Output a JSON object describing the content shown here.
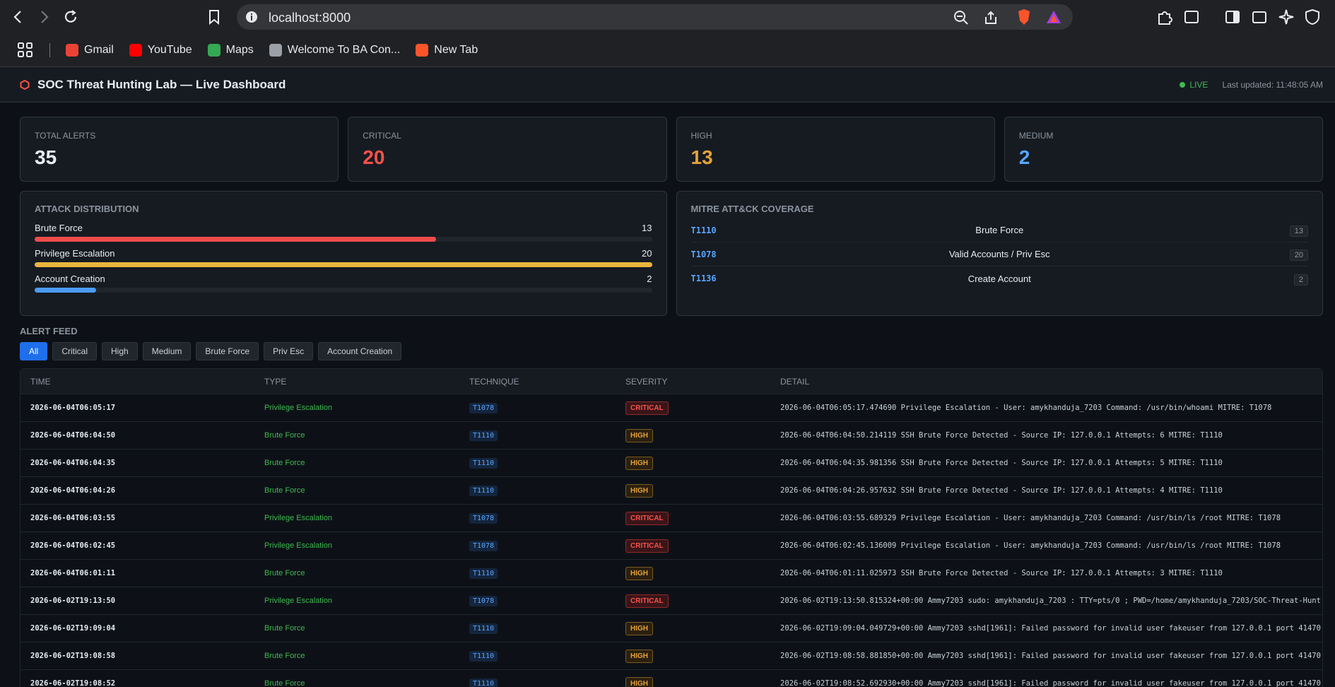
{
  "browser": {
    "url": "localhost:8000",
    "bookmarks": [
      "Gmail",
      "YouTube",
      "Maps",
      "Welcome To BA Con...",
      "New Tab"
    ]
  },
  "header": {
    "title": "SOC Threat Hunting Lab — Live Dashboard",
    "live": "LIVE",
    "updated": "Last updated: 11:48:05 AM"
  },
  "stats": [
    {
      "label": "TOTAL ALERTS",
      "value": 35,
      "color": "#e6edf3"
    },
    {
      "label": "CRITICAL",
      "value": 20,
      "color": "#f85149"
    },
    {
      "label": "HIGH",
      "value": 13,
      "color": "#e3a23b"
    },
    {
      "label": "MEDIUM",
      "value": 2,
      "color": "#58a6ff"
    }
  ],
  "distribution": {
    "title": "ATTACK DISTRIBUTION",
    "items": [
      {
        "name": "Brute Force",
        "count": 13,
        "color": "#f04b4b"
      },
      {
        "name": "Privilege Escalation",
        "count": 20,
        "color": "#e8b53e"
      },
      {
        "name": "Account Creation",
        "count": 2,
        "color": "#4b9bf5"
      }
    ]
  },
  "mitre": {
    "title": "MITRE ATT&CK COVERAGE",
    "rows": [
      {
        "id": "T1110",
        "name": "Brute Force",
        "count": 13
      },
      {
        "id": "T1078",
        "name": "Valid Accounts / Priv Esc",
        "count": 20
      },
      {
        "id": "T1136",
        "name": "Create Account",
        "count": 2
      }
    ]
  },
  "feed": {
    "title": "ALERT FEED",
    "filters": [
      "All",
      "Critical",
      "High",
      "Medium",
      "Brute Force",
      "Priv Esc",
      "Account Creation"
    ],
    "columns": [
      "TIME",
      "TYPE",
      "TECHNIQUE",
      "SEVERITY",
      "DETAIL"
    ],
    "rows": [
      {
        "time": "2026-06-04T06:05:17",
        "type": "Privilege Escalation",
        "technique": "T1078",
        "severity": "CRITICAL",
        "detail": "2026-06-04T06:05:17.474690 Privilege Escalation - User: amykhanduja_7203 Command: /usr/bin/whoami MITRE: T1078"
      },
      {
        "time": "2026-06-04T06:04:50",
        "type": "Brute Force",
        "technique": "T1110",
        "severity": "HIGH",
        "detail": "2026-06-04T06:04:50.214119 SSH Brute Force Detected - Source IP: 127.0.0.1 Attempts: 6 MITRE: T1110"
      },
      {
        "time": "2026-06-04T06:04:35",
        "type": "Brute Force",
        "technique": "T1110",
        "severity": "HIGH",
        "detail": "2026-06-04T06:04:35.981356 SSH Brute Force Detected - Source IP: 127.0.0.1 Attempts: 5 MITRE: T1110"
      },
      {
        "time": "2026-06-04T06:04:26",
        "type": "Brute Force",
        "technique": "T1110",
        "severity": "HIGH",
        "detail": "2026-06-04T06:04:26.957632 SSH Brute Force Detected - Source IP: 127.0.0.1 Attempts: 4 MITRE: T1110"
      },
      {
        "time": "2026-06-04T06:03:55",
        "type": "Privilege Escalation",
        "technique": "T1078",
        "severity": "CRITICAL",
        "detail": "2026-06-04T06:03:55.689329 Privilege Escalation - User: amykhanduja_7203 Command: /usr/bin/ls /root MITRE: T1078"
      },
      {
        "time": "2026-06-04T06:02:45",
        "type": "Privilege Escalation",
        "technique": "T1078",
        "severity": "CRITICAL",
        "detail": "2026-06-04T06:02:45.136009 Privilege Escalation - User: amykhanduja_7203 Command: /usr/bin/ls /root MITRE: T1078"
      },
      {
        "time": "2026-06-04T06:01:11",
        "type": "Brute Force",
        "technique": "T1110",
        "severity": "HIGH",
        "detail": "2026-06-04T06:01:11.025973 SSH Brute Force Detected - Source IP: 127.0.0.1 Attempts: 3 MITRE: T1110"
      },
      {
        "time": "2026-06-02T19:13:50",
        "type": "Privilege Escalation",
        "technique": "T1078",
        "severity": "CRITICAL",
        "detail": "2026-06-02T19:13:50.815324+00:00 Ammy7203 sudo: amykhanduja_7203 : TTY=pts/0 ; PWD=/home/amykhanduja_7203/SOC-Threat-Hunt..."
      },
      {
        "time": "2026-06-02T19:09:04",
        "type": "Brute Force",
        "technique": "T1110",
        "severity": "HIGH",
        "detail": "2026-06-02T19:09:04.049729+00:00 Ammy7203 sshd[1961]: Failed password for invalid user fakeuser from 127.0.0.1 port 41470..."
      },
      {
        "time": "2026-06-02T19:08:58",
        "type": "Brute Force",
        "technique": "T1110",
        "severity": "HIGH",
        "detail": "2026-06-02T19:08:58.881850+00:00 Ammy7203 sshd[1961]: Failed password for invalid user fakeuser from 127.0.0.1 port 41470..."
      },
      {
        "time": "2026-06-02T19:08:52",
        "type": "Brute Force",
        "technique": "T1110",
        "severity": "HIGH",
        "detail": "2026-06-02T19:08:52.692930+00:00 Ammy7203 sshd[1961]: Failed password for invalid user fakeuser from 127.0.0.1 port 41470..."
      }
    ]
  }
}
